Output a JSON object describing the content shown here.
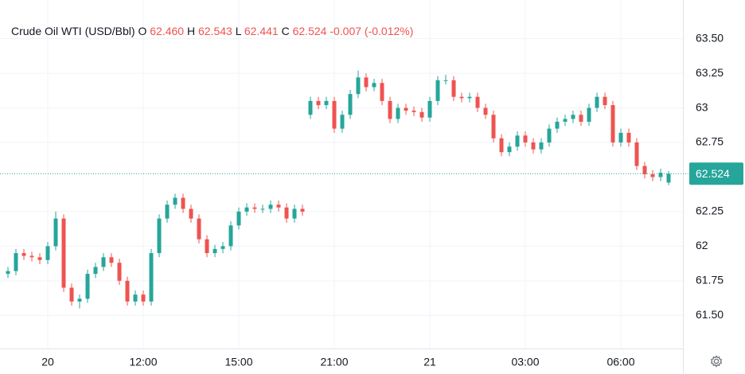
{
  "chart_data": {
    "type": "candlestick",
    "title": "Crude Oil WTI (USD/Bbl)",
    "ohlc_labels": [
      {
        "key": "O",
        "text": "62.460"
      },
      {
        "key": "H",
        "text": "62.543"
      },
      {
        "key": "L",
        "text": "62.441"
      },
      {
        "key": "C",
        "text": "62.524"
      }
    ],
    "change_text": "-0.007 (-0.012%)",
    "last_price_label": "62.524",
    "up_color": "#26a69a",
    "down_color": "#ef5350",
    "categories": [
      null,
      null,
      null,
      null,
      null,
      "20",
      null,
      null,
      null,
      null,
      null,
      null,
      null,
      null,
      null,
      null,
      null,
      "12:00",
      null,
      null,
      null,
      null,
      null,
      null,
      null,
      null,
      null,
      null,
      null,
      "15:00",
      null,
      null,
      null,
      null,
      null,
      null,
      null,
      null,
      null,
      null,
      null,
      "21:00",
      null,
      null,
      null,
      null,
      null,
      null,
      null,
      null,
      null,
      null,
      null,
      "21",
      null,
      null,
      null,
      null,
      null,
      null,
      null,
      null,
      null,
      null,
      null,
      "03:00",
      null,
      null,
      null,
      null,
      null,
      null,
      null,
      null,
      null,
      null,
      null,
      "06:00",
      null,
      null,
      null,
      null,
      null,
      null
    ],
    "open": [
      61.8,
      61.82,
      61.95,
      61.93,
      61.92,
      61.9,
      62.0,
      62.2,
      61.7,
      61.6,
      61.62,
      61.8,
      61.85,
      61.92,
      61.88,
      61.75,
      61.6,
      61.65,
      61.6,
      61.95,
      62.2,
      62.3,
      62.35,
      62.27,
      62.2,
      62.05,
      61.95,
      61.98,
      62.0,
      62.15,
      62.25,
      62.28,
      62.27,
      62.27,
      62.3,
      62.28,
      62.2,
      62.27,
      62.95,
      63.05,
      63.02,
      63.05,
      62.85,
      62.95,
      63.1,
      63.22,
      63.15,
      63.18,
      63.05,
      62.92,
      63.0,
      62.98,
      62.97,
      62.93,
      63.05,
      63.2,
      63.2,
      63.08,
      63.07,
      63.08,
      63.0,
      62.95,
      62.78,
      62.68,
      62.72,
      62.8,
      62.75,
      62.7,
      62.75,
      62.85,
      62.9,
      62.92,
      62.95,
      62.9,
      63.0,
      63.08,
      63.02,
      62.75,
      62.82,
      62.75,
      62.58,
      62.52,
      62.5,
      62.46
    ],
    "high": [
      61.85,
      61.98,
      61.98,
      61.96,
      61.95,
      62.03,
      62.25,
      62.23,
      61.73,
      61.65,
      61.83,
      61.88,
      61.95,
      61.95,
      61.91,
      61.78,
      61.68,
      61.68,
      61.98,
      62.23,
      62.33,
      62.38,
      62.38,
      62.3,
      62.23,
      62.08,
      62.01,
      62.03,
      62.18,
      62.28,
      62.31,
      62.31,
      62.3,
      62.33,
      62.33,
      62.31,
      62.3,
      62.3,
      63.08,
      63.08,
      63.08,
      63.08,
      62.98,
      63.13,
      63.27,
      63.25,
      63.21,
      63.21,
      63.08,
      63.03,
      63.03,
      63.01,
      63.0,
      63.08,
      63.23,
      63.24,
      63.23,
      63.11,
      63.11,
      63.11,
      63.03,
      62.98,
      62.81,
      62.75,
      62.83,
      62.83,
      62.78,
      62.78,
      62.88,
      62.93,
      62.95,
      62.98,
      62.98,
      63.03,
      63.11,
      63.11,
      63.05,
      62.85,
      62.85,
      62.78,
      62.61,
      62.55,
      62.56,
      62.543
    ],
    "low": [
      61.77,
      61.79,
      61.9,
      61.89,
      61.87,
      61.87,
      61.97,
      61.67,
      61.57,
      61.55,
      61.59,
      61.77,
      61.82,
      61.85,
      61.72,
      61.57,
      61.57,
      61.57,
      61.57,
      61.92,
      62.17,
      62.27,
      62.24,
      62.17,
      62.02,
      61.92,
      61.92,
      61.95,
      61.97,
      62.12,
      62.22,
      62.24,
      62.24,
      62.24,
      62.25,
      62.17,
      62.17,
      62.22,
      62.92,
      62.99,
      62.99,
      62.82,
      62.82,
      62.92,
      63.07,
      63.12,
      63.12,
      63.02,
      62.89,
      62.89,
      62.95,
      62.94,
      62.9,
      62.9,
      63.02,
      63.17,
      63.05,
      63.04,
      63.04,
      62.97,
      62.92,
      62.75,
      62.65,
      62.65,
      62.69,
      62.72,
      62.67,
      62.67,
      62.72,
      62.82,
      62.87,
      62.89,
      62.87,
      62.87,
      62.97,
      62.99,
      62.72,
      62.72,
      62.72,
      62.55,
      62.49,
      62.47,
      62.47,
      62.441
    ],
    "close": [
      61.82,
      61.95,
      61.93,
      61.92,
      61.9,
      62.0,
      62.2,
      61.7,
      61.6,
      61.62,
      61.8,
      61.85,
      61.92,
      61.88,
      61.75,
      61.6,
      61.65,
      61.6,
      61.95,
      62.2,
      62.3,
      62.35,
      62.27,
      62.2,
      62.05,
      61.95,
      61.98,
      62.0,
      62.15,
      62.25,
      62.28,
      62.27,
      62.27,
      62.3,
      62.28,
      62.2,
      62.27,
      62.25,
      63.05,
      63.02,
      63.05,
      62.85,
      62.95,
      63.1,
      63.22,
      63.15,
      63.18,
      63.05,
      62.92,
      63.0,
      62.98,
      62.97,
      62.93,
      63.05,
      63.2,
      63.2,
      63.08,
      63.07,
      63.08,
      63.0,
      62.95,
      62.78,
      62.68,
      62.72,
      62.8,
      62.75,
      62.7,
      62.75,
      62.85,
      62.9,
      62.92,
      62.95,
      62.9,
      63.0,
      63.08,
      63.02,
      62.75,
      62.82,
      62.75,
      62.58,
      62.52,
      62.5,
      62.531,
      62.524
    ],
    "ylim": [
      61.26,
      63.78
    ],
    "yticks": [
      {
        "value": 63.5,
        "label": "63.50"
      },
      63.25,
      63,
      62.75,
      62.25,
      62,
      61.75,
      {
        "value": 61.5,
        "label": "61.50"
      }
    ],
    "grid": true
  }
}
